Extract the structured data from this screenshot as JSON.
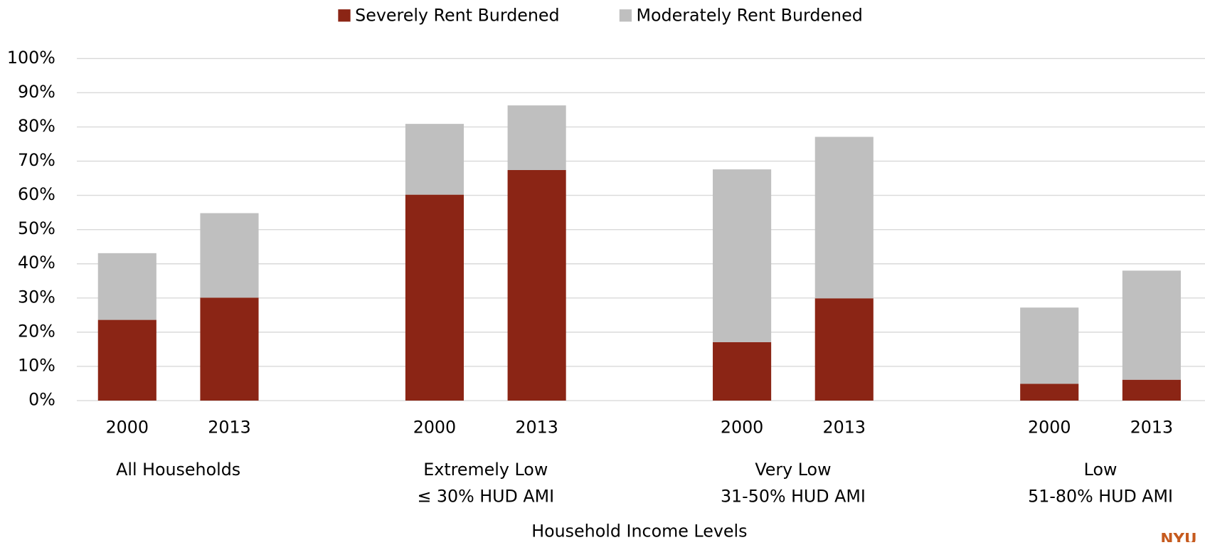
{
  "chart_data": {
    "type": "stacked_bar",
    "categories": [
      "2000",
      "2013",
      "2000",
      "2013",
      "2000",
      "2013",
      "2000",
      "2013"
    ],
    "groups": [
      {
        "lines": [
          "All Households"
        ]
      },
      {
        "lines": [
          "Extremely Low",
          "≤ 30% HUD AMI"
        ]
      },
      {
        "lines": [
          "Very Low",
          "31-50% HUD AMI"
        ]
      },
      {
        "lines": [
          "Low",
          "51-80% HUD AMI"
        ]
      }
    ],
    "series": [
      {
        "name": "Severely Rent Burdened",
        "color": "#8b2515",
        "values": [
          23.6,
          30.1,
          60.2,
          67.4,
          17.1,
          29.9,
          4.9,
          6.1
        ]
      },
      {
        "name": "Moderately Rent Burdened",
        "color": "#bfbfbf",
        "values": [
          19.5,
          24.7,
          20.7,
          18.9,
          50.5,
          47.2,
          22.3,
          31.9
        ]
      }
    ],
    "x_label": "Household Income Levels",
    "ylim": [
      0,
      100
    ],
    "yticks": [
      {
        "value": 0,
        "label": "0%"
      },
      {
        "value": 10,
        "label": "10%"
      },
      {
        "value": 20,
        "label": "20%"
      },
      {
        "value": 30,
        "label": "30%"
      },
      {
        "value": 40,
        "label": "40%"
      },
      {
        "value": 50,
        "label": "50%"
      },
      {
        "value": 60,
        "label": "60%"
      },
      {
        "value": 70,
        "label": "70%"
      },
      {
        "value": 80,
        "label": "80%"
      },
      {
        "value": 90,
        "label": "90%"
      },
      {
        "value": 100,
        "label": "100%"
      }
    ],
    "grid": true,
    "legend": "top",
    "logo_text": "NYU"
  }
}
